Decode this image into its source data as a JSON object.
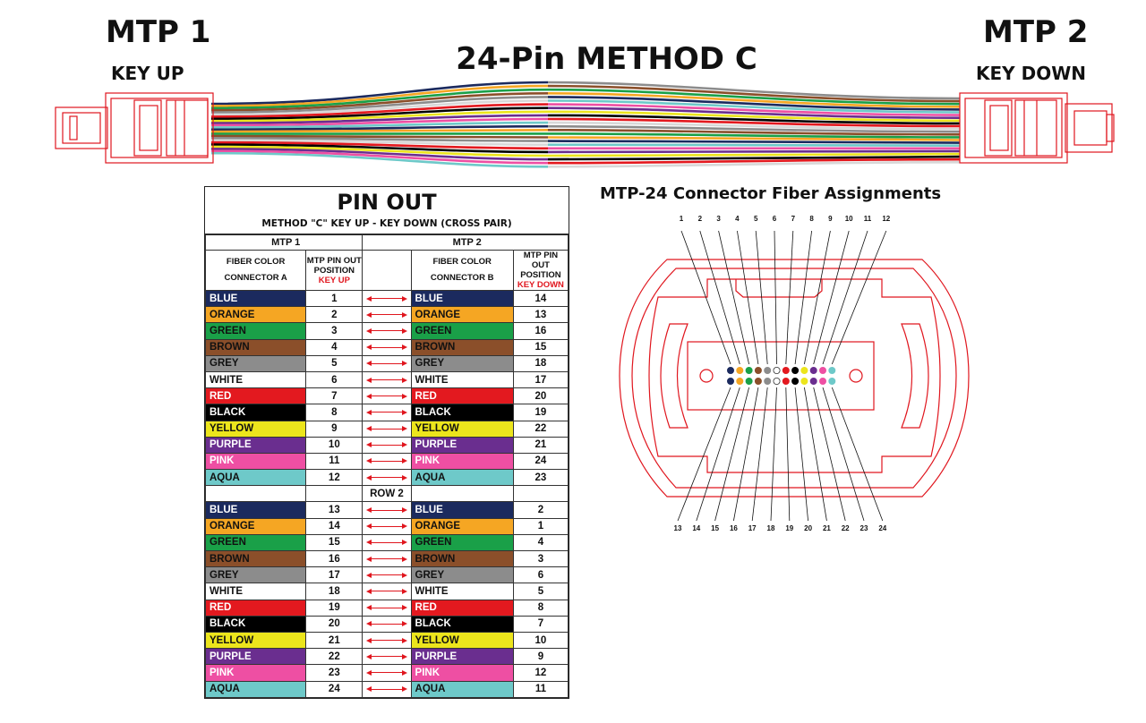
{
  "header": {
    "title": "24-Pin METHOD C",
    "left": {
      "name": "MTP 1",
      "key": "KEY UP"
    },
    "right": {
      "name": "MTP 2",
      "key": "KEY DOWN"
    }
  },
  "colors": {
    "BLUE": "#1b2a5e",
    "ORANGE": "#f5a623",
    "GREEN": "#1aa048",
    "BROWN": "#8b4f2a",
    "GREY": "#8c8c8c",
    "WHITE": "#ffffff",
    "RED": "#e3191f",
    "BLACK": "#000000",
    "YELLOW": "#ece51c",
    "PURPLE": "#6a2e8f",
    "PINK": "#ee4fa3",
    "AQUA": "#6ec9c9"
  },
  "pinout": {
    "title": "PIN OUT",
    "subtitle": "METHOD \"C\" KEY UP - KEY DOWN  (CROSS PAIR)",
    "group_left": "MTP 1",
    "group_right": "MTP 2",
    "col_a": "FIBER COLOR CONNECTOR A",
    "col_pos_a": "MTP PIN OUT POSITION",
    "col_pos_a_key": "KEY UP",
    "col_b": "FIBER COLOR CONNECTOR B",
    "col_pos_b": "MTP PIN OUT POSITION",
    "col_pos_b_key": "KEY DOWN",
    "row2_label": "ROW 2",
    "rows1": [
      {
        "a": "BLUE",
        "pa": "1",
        "b": "BLUE",
        "pb": "14"
      },
      {
        "a": "ORANGE",
        "pa": "2",
        "b": "ORANGE",
        "pb": "13"
      },
      {
        "a": "GREEN",
        "pa": "3",
        "b": "GREEN",
        "pb": "16"
      },
      {
        "a": "BROWN",
        "pa": "4",
        "b": "BROWN",
        "pb": "15"
      },
      {
        "a": "GREY",
        "pa": "5",
        "b": "GREY",
        "pb": "18"
      },
      {
        "a": "WHITE",
        "pa": "6",
        "b": "WHITE",
        "pb": "17"
      },
      {
        "a": "RED",
        "pa": "7",
        "b": "RED",
        "pb": "20"
      },
      {
        "a": "BLACK",
        "pa": "8",
        "b": "BLACK",
        "pb": "19"
      },
      {
        "a": "YELLOW",
        "pa": "9",
        "b": "YELLOW",
        "pb": "22"
      },
      {
        "a": "PURPLE",
        "pa": "10",
        "b": "PURPLE",
        "pb": "21"
      },
      {
        "a": "PINK",
        "pa": "11",
        "b": "PINK",
        "pb": "24"
      },
      {
        "a": "AQUA",
        "pa": "12",
        "b": "AQUA",
        "pb": "23"
      }
    ],
    "rows2": [
      {
        "a": "BLUE",
        "pa": "13",
        "b": "BLUE",
        "pb": "2"
      },
      {
        "a": "ORANGE",
        "pa": "14",
        "b": "ORANGE",
        "pb": "1"
      },
      {
        "a": "GREEN",
        "pa": "15",
        "b": "GREEN",
        "pb": "4"
      },
      {
        "a": "BROWN",
        "pa": "16",
        "b": "BROWN",
        "pb": "3"
      },
      {
        "a": "GREY",
        "pa": "17",
        "b": "GREY",
        "pb": "6"
      },
      {
        "a": "WHITE",
        "pa": "18",
        "b": "WHITE",
        "pb": "5"
      },
      {
        "a": "RED",
        "pa": "19",
        "b": "RED",
        "pb": "8"
      },
      {
        "a": "BLACK",
        "pa": "20",
        "b": "BLACK",
        "pb": "7"
      },
      {
        "a": "YELLOW",
        "pa": "21",
        "b": "YELLOW",
        "pb": "10"
      },
      {
        "a": "PURPLE",
        "pa": "22",
        "b": "PURPLE",
        "pb": "9"
      },
      {
        "a": "PINK",
        "pa": "23",
        "b": "PINK",
        "pb": "12"
      },
      {
        "a": "AQUA",
        "pa": "24",
        "b": "AQUA",
        "pb": "11"
      }
    ]
  },
  "fiber_assignment": {
    "title": "MTP-24 Connector Fiber Assignments",
    "top_labels": [
      "1",
      "2",
      "3",
      "4",
      "5",
      "6",
      "7",
      "8",
      "9",
      "10",
      "11",
      "12"
    ],
    "bottom_labels": [
      "13",
      "14",
      "15",
      "16",
      "17",
      "18",
      "19",
      "20",
      "21",
      "22",
      "23",
      "24"
    ],
    "dot_colors": [
      "BLUE",
      "ORANGE",
      "GREEN",
      "BROWN",
      "GREY",
      "WHITE",
      "RED",
      "BLACK",
      "YELLOW",
      "PURPLE",
      "PINK",
      "AQUA"
    ]
  }
}
